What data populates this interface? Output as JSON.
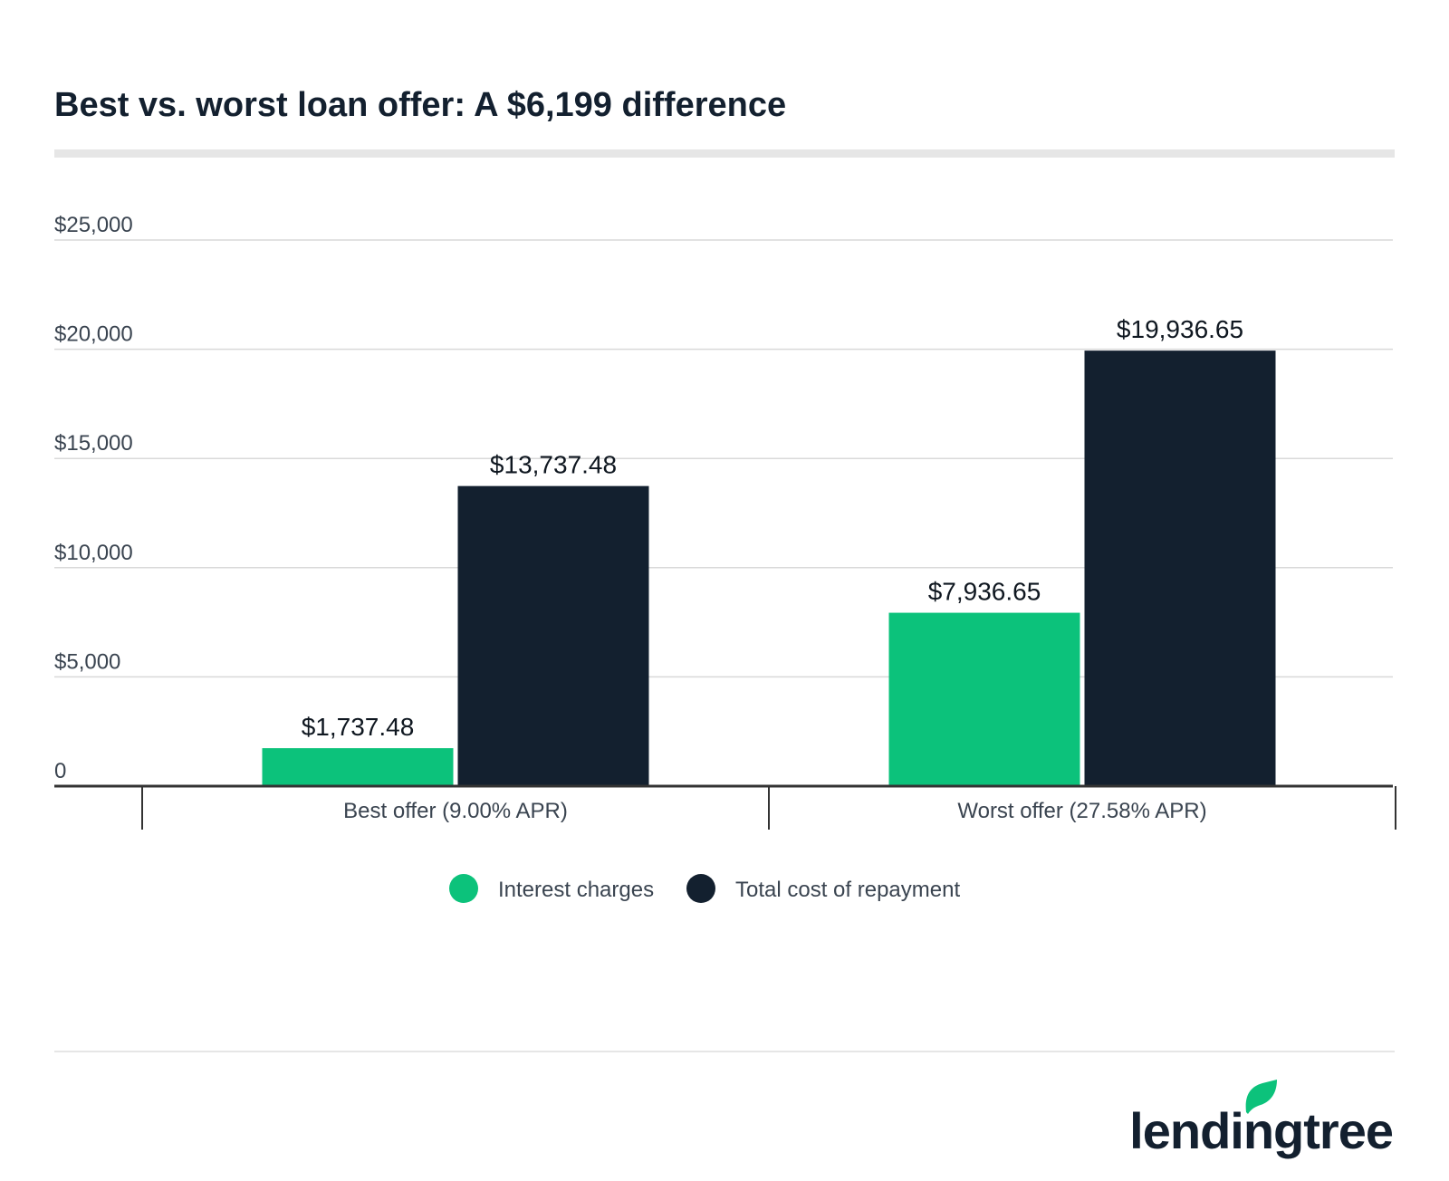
{
  "colors": {
    "interest": "#0cc27b",
    "total": "#13202f",
    "grid": "#d9d9d9",
    "divider": "#e6e6e6",
    "axis": "#333333",
    "logo_leaf": "#0cc27b"
  },
  "brand": {
    "name": "lendingtree"
  },
  "chart_data": {
    "type": "bar",
    "title": "Best vs. worst loan offer: A $6,199 difference",
    "categories": [
      "Best offer (9.00% APR)",
      "Worst offer (27.58% APR)"
    ],
    "series": [
      {
        "name": "Interest charges",
        "values": [
          1737.48,
          7936.65
        ],
        "labels": [
          "$1,737.48",
          "$7,936.65"
        ]
      },
      {
        "name": "Total cost of repayment",
        "values": [
          13737.48,
          19936.65
        ],
        "labels": [
          "$13,737.48",
          "$19,936.65"
        ]
      }
    ],
    "ylim": [
      0,
      25000
    ],
    "yticks": [
      0,
      5000,
      10000,
      15000,
      20000,
      25000
    ],
    "ytick_labels": [
      "0",
      "$5,000",
      "$10,000",
      "$15,000",
      "$20,000",
      "$25,000"
    ],
    "xlabel": "",
    "ylabel": "",
    "grid": true,
    "legend": "bottom-center"
  }
}
